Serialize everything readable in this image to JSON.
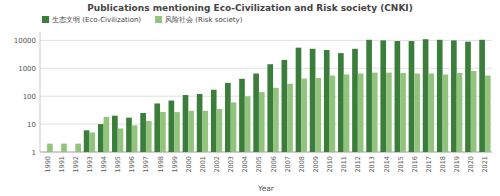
{
  "chart_data": {
    "type": "bar",
    "title": "Publications mentioning Eco-Civilization and Risk society (CNKI)",
    "x_label": "Year",
    "categories": [
      "1990",
      "1991",
      "1992",
      "1993",
      "1994",
      "1995",
      "1996",
      "1997",
      "1998",
      "1999",
      "2000",
      "2001",
      "2002",
      "2003",
      "2004",
      "2005",
      "2006",
      "2007",
      "2008",
      "2009",
      "2010",
      "2011",
      "2012",
      "2013",
      "2014",
      "2015",
      "2016",
      "2017",
      "2018",
      "2019",
      "2020",
      "2021"
    ],
    "series": [
      {
        "name": "生态文明 (Eco-Civilization)",
        "color": "#3b7d3a",
        "values": [
          null,
          null,
          null,
          6,
          10,
          20,
          17,
          25,
          55,
          70,
          110,
          120,
          170,
          300,
          420,
          650,
          1400,
          2000,
          5500,
          5000,
          4500,
          3500,
          5000,
          10500,
          10000,
          9500,
          9500,
          11000,
          10500,
          10000,
          9000,
          10500
        ]
      },
      {
        "name": "风险社会 (Risk society)",
        "color": "#93c47d",
        "values": [
          2,
          2,
          2,
          5,
          18,
          7,
          9,
          13,
          27,
          27,
          30,
          30,
          35,
          60,
          100,
          140,
          200,
          280,
          430,
          450,
          550,
          600,
          650,
          700,
          700,
          680,
          650,
          650,
          600,
          680,
          800,
          550
        ]
      }
    ],
    "log": "y",
    "ylim": [
      1,
      20000
    ],
    "yticks": [
      1,
      10,
      100,
      1000,
      10000
    ],
    "grid": true,
    "legend": "top-left"
  }
}
